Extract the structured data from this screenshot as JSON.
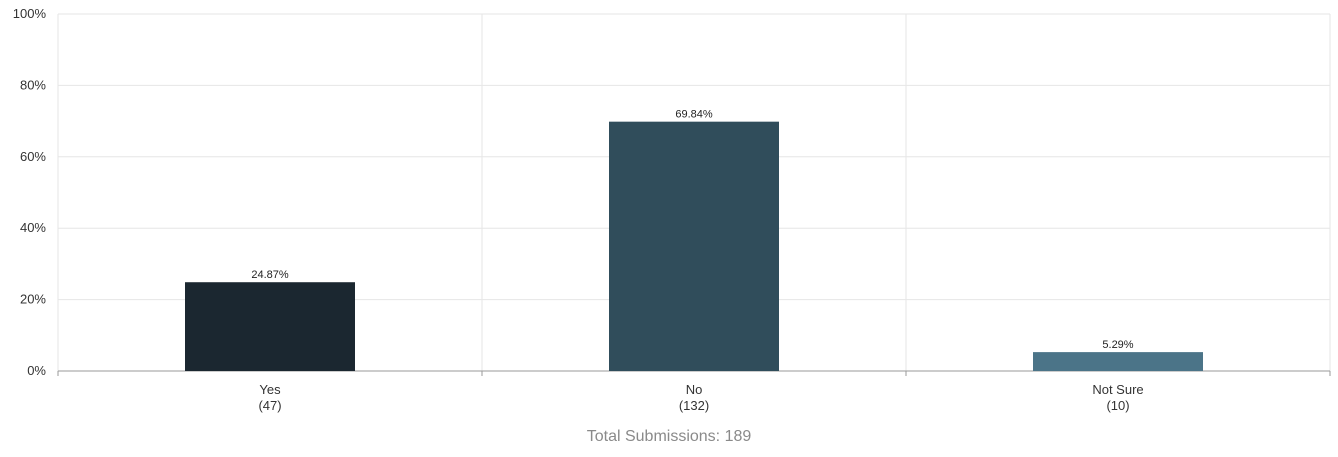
{
  "chart_data": {
    "type": "bar",
    "categories": [
      "Yes",
      "No",
      "Not Sure"
    ],
    "counts": [
      "(47)",
      "(132)",
      "(10)"
    ],
    "values": [
      24.87,
      69.84,
      5.29
    ],
    "data_labels": [
      "24.87%",
      "69.84%",
      "5.29%"
    ],
    "bar_colors": [
      "#1b2730",
      "#304d5b",
      "#4b7488"
    ],
    "ylim": [
      0,
      100
    ],
    "yticks": [
      0,
      20,
      40,
      60,
      80,
      100
    ],
    "ytick_labels": [
      "0%",
      "20%",
      "40%",
      "60%",
      "80%",
      "100%"
    ],
    "grid": true,
    "title": "",
    "xlabel": "",
    "ylabel": ""
  },
  "footer": {
    "total_label": "Total Submissions: 189"
  }
}
